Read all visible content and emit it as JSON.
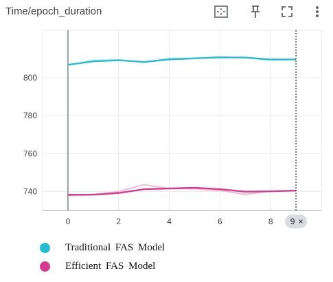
{
  "toolbar": {
    "fit_icon": "fit-domain-icon",
    "pin_icon": "pin-icon",
    "fullscreen_icon": "fullscreen-icon",
    "more_icon": "more-vert-icon"
  },
  "hover": {
    "step_label": "9",
    "close_glyph": "×"
  },
  "colors": {
    "traditional": "#26bdd4",
    "traditional_raw": "#a5e3ec",
    "efficient": "#d63b8f",
    "efficient_raw": "#f1b3d4",
    "axis": "#9aa0a6",
    "grid": "#e8e8e8",
    "tick_text": "#3c4043"
  },
  "chart_data": {
    "type": "line",
    "title": "Time/epoch_duration",
    "xlabel": "",
    "ylabel": "",
    "xlim": [
      -1,
      10
    ],
    "ylim": [
      730,
      825
    ],
    "x_ticks": [
      0,
      2,
      4,
      6,
      8
    ],
    "y_ticks": [
      740,
      760,
      780,
      800
    ],
    "hover_x": 9,
    "grid": true,
    "legend_position": "bottom",
    "series": [
      {
        "name": "Traditional FAS Model",
        "x": [
          0,
          1,
          2,
          3,
          4,
          5,
          6,
          7,
          8,
          9
        ],
        "values": [
          806.8,
          808.6,
          809.2,
          808.3,
          809.6,
          810.2,
          810.7,
          810.6,
          809.6,
          809.6
        ],
        "raw": [
          806.5,
          809.2,
          809.4,
          808.0,
          810.2,
          810.3,
          811.0,
          810.5,
          809.2,
          809.6
        ]
      },
      {
        "name": "Efficient FAS Model",
        "x": [
          0,
          1,
          2,
          3,
          4,
          5,
          6,
          7,
          8,
          9
        ],
        "values": [
          738.2,
          738.3,
          739.2,
          741.2,
          741.6,
          742.0,
          741.2,
          739.9,
          740.1,
          740.5
        ],
        "raw": [
          738.0,
          738.4,
          740.0,
          743.6,
          741.5,
          741.4,
          740.5,
          738.5,
          740.2,
          740.6
        ]
      }
    ]
  }
}
